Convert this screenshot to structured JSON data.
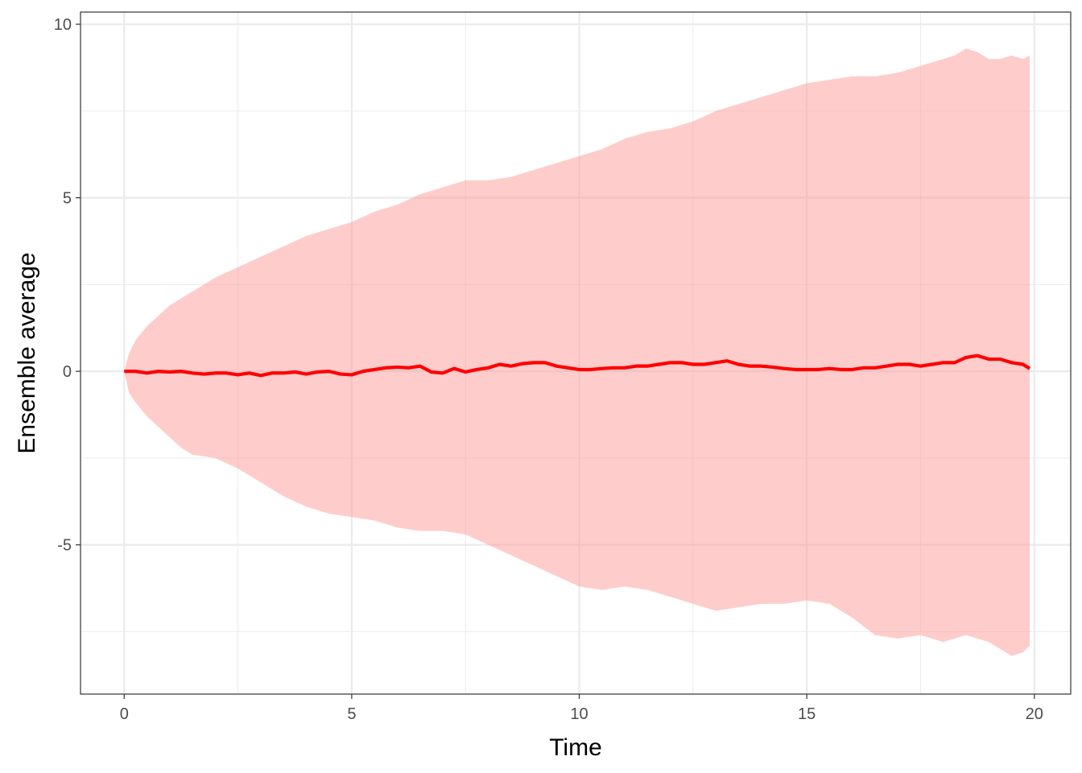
{
  "chart_data": {
    "type": "area",
    "title": "",
    "xlabel": "Time",
    "ylabel": "Ensemble average",
    "xlim": [
      -0.96,
      20.8
    ],
    "ylim": [
      -9.3,
      10.35
    ],
    "x_ticks": [
      0,
      5,
      10,
      15,
      20
    ],
    "x_tick_labels": [
      "0",
      "5",
      "10",
      "15",
      "20"
    ],
    "y_ticks": [
      -5,
      0,
      5,
      10
    ],
    "y_tick_labels": [
      "-5",
      "0",
      "5",
      "10"
    ],
    "x_minor_ticks": [
      2.5,
      7.5,
      12.5,
      17.5
    ],
    "y_minor_ticks": [
      -7.5,
      -2.5,
      2.5,
      7.5
    ],
    "grid": true,
    "legend": "none",
    "series": [
      {
        "kind": "ribbon",
        "color": "#FF9999",
        "opacity": 0.5,
        "x": [
          0,
          0.1,
          0.25,
          0.5,
          0.75,
          1,
          1.25,
          1.5,
          2,
          2.5,
          3,
          3.5,
          4,
          4.5,
          5,
          5.5,
          6,
          6.5,
          7,
          7.5,
          8,
          8.5,
          9,
          9.5,
          10,
          10.5,
          11,
          11.5,
          12,
          12.5,
          13,
          13.5,
          14,
          14.5,
          15,
          15.5,
          16,
          16.5,
          17,
          17.5,
          18,
          18.25,
          18.5,
          18.75,
          19,
          19.25,
          19.5,
          19.75,
          19.9
        ],
        "lower": [
          0,
          -0.6,
          -0.9,
          -1.3,
          -1.6,
          -1.9,
          -2.2,
          -2.4,
          -2.5,
          -2.8,
          -3.2,
          -3.6,
          -3.9,
          -4.1,
          -4.2,
          -4.3,
          -4.5,
          -4.6,
          -4.6,
          -4.7,
          -5.0,
          -5.3,
          -5.6,
          -5.9,
          -6.2,
          -6.3,
          -6.2,
          -6.3,
          -6.5,
          -6.7,
          -6.9,
          -6.8,
          -6.7,
          -6.7,
          -6.6,
          -6.7,
          -7.1,
          -7.6,
          -7.7,
          -7.6,
          -7.8,
          -7.7,
          -7.6,
          -7.7,
          -7.8,
          -8.0,
          -8.2,
          -8.1,
          -7.9
        ],
        "upper": [
          0,
          0.5,
          0.9,
          1.3,
          1.6,
          1.9,
          2.1,
          2.3,
          2.7,
          3.0,
          3.3,
          3.6,
          3.9,
          4.1,
          4.3,
          4.6,
          4.8,
          5.1,
          5.3,
          5.5,
          5.5,
          5.6,
          5.8,
          6.0,
          6.2,
          6.4,
          6.7,
          6.9,
          7.0,
          7.2,
          7.5,
          7.7,
          7.9,
          8.1,
          8.3,
          8.4,
          8.5,
          8.5,
          8.6,
          8.8,
          9.0,
          9.1,
          9.3,
          9.2,
          9.0,
          9.0,
          9.1,
          9.0,
          9.1
        ]
      },
      {
        "kind": "line",
        "color": "#FF0000",
        "x": [
          0,
          0.25,
          0.5,
          0.75,
          1,
          1.25,
          1.5,
          1.75,
          2,
          2.25,
          2.5,
          2.75,
          3,
          3.25,
          3.5,
          3.75,
          4,
          4.25,
          4.5,
          4.75,
          5,
          5.25,
          5.5,
          5.75,
          6,
          6.25,
          6.5,
          6.75,
          7,
          7.25,
          7.5,
          7.75,
          8,
          8.25,
          8.5,
          8.75,
          9,
          9.25,
          9.5,
          9.75,
          10,
          10.25,
          10.5,
          10.75,
          11,
          11.25,
          11.5,
          11.75,
          12,
          12.25,
          12.5,
          12.75,
          13,
          13.25,
          13.5,
          13.75,
          14,
          14.25,
          14.5,
          14.75,
          15,
          15.25,
          15.5,
          15.75,
          16,
          16.25,
          16.5,
          16.75,
          17,
          17.25,
          17.5,
          17.75,
          18,
          18.25,
          18.5,
          18.75,
          19,
          19.25,
          19.5,
          19.75,
          19.9
        ],
        "y": [
          0,
          0,
          -0.05,
          0,
          -0.02,
          0,
          -0.05,
          -0.08,
          -0.05,
          -0.05,
          -0.1,
          -0.05,
          -0.12,
          -0.05,
          -0.05,
          -0.02,
          -0.08,
          -0.02,
          0,
          -0.08,
          -0.1,
          0,
          0.05,
          0.1,
          0.12,
          0.1,
          0.15,
          -0.02,
          -0.05,
          0.08,
          -0.02,
          0.05,
          0.1,
          0.2,
          0.15,
          0.22,
          0.25,
          0.25,
          0.15,
          0.1,
          0.05,
          0.05,
          0.08,
          0.1,
          0.1,
          0.15,
          0.15,
          0.2,
          0.25,
          0.25,
          0.2,
          0.2,
          0.25,
          0.3,
          0.2,
          0.15,
          0.15,
          0.12,
          0.08,
          0.05,
          0.05,
          0.05,
          0.08,
          0.05,
          0.05,
          0.1,
          0.1,
          0.15,
          0.2,
          0.2,
          0.15,
          0.2,
          0.25,
          0.25,
          0.4,
          0.45,
          0.35,
          0.35,
          0.25,
          0.2,
          0.08
        ]
      }
    ]
  }
}
